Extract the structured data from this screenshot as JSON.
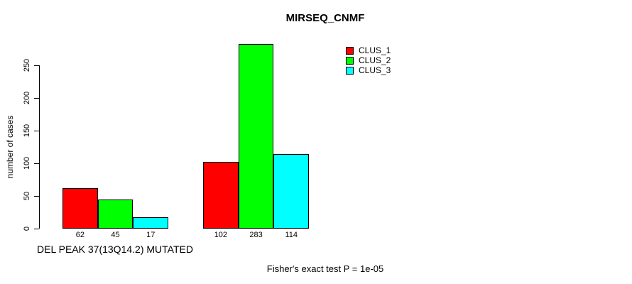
{
  "chart_data": {
    "type": "bar",
    "title": "MIRSEQ_CNMF",
    "xlabel": "DEL PEAK 37(13Q14.2) MUTATED",
    "ylabel": "number of cases",
    "annotation": "Fisher's exact test P = 1e-05",
    "categories": [
      "DEL PEAK 37(13Q14.2) MUTATED",
      ""
    ],
    "series": [
      {
        "name": "CLUS_1",
        "color": "#ff0000",
        "values": [
          62,
          102
        ]
      },
      {
        "name": "CLUS_2",
        "color": "#00ff00",
        "values": [
          45,
          283
        ]
      },
      {
        "name": "CLUS_3",
        "color": "#00ffff",
        "values": [
          17,
          114
        ]
      }
    ],
    "bar_value_labels": [
      [
        62,
        45,
        17
      ],
      [
        102,
        283,
        114
      ]
    ],
    "yticks": [
      0,
      50,
      100,
      150,
      200,
      250
    ],
    "ylim": [
      0,
      290
    ],
    "grid": false,
    "legend": {
      "position": "top-right",
      "entries": [
        {
          "label": "CLUS_1",
          "color": "#ff0000"
        },
        {
          "label": "CLUS_2",
          "color": "#00ff00"
        },
        {
          "label": "CLUS_3",
          "color": "#00ffff"
        }
      ]
    },
    "axis_color": "#000000",
    "bar_border_color": "#000000",
    "background_color": "#ffffff"
  }
}
